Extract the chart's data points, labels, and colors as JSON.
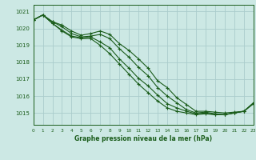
{
  "title": "Graphe pression niveau de la mer (hPa)",
  "background_color": "#cce8e4",
  "grid_color": "#aacccc",
  "line_color": "#1a5c1a",
  "marker_color": "#1a5c1a",
  "xlim": [
    0,
    23
  ],
  "ylim": [
    1014.3,
    1021.4
  ],
  "yticks": [
    1015,
    1016,
    1017,
    1018,
    1019,
    1020,
    1021
  ],
  "xticks": [
    0,
    1,
    2,
    3,
    4,
    5,
    6,
    7,
    8,
    9,
    10,
    11,
    12,
    13,
    14,
    15,
    16,
    17,
    18,
    19,
    20,
    21,
    22,
    23
  ],
  "series": [
    [
      1020.5,
      1020.8,
      1020.4,
      1020.2,
      1019.85,
      1019.6,
      1019.7,
      1019.85,
      1019.65,
      1019.1,
      1018.7,
      1018.2,
      1017.65,
      1016.9,
      1016.5,
      1015.9,
      1015.5,
      1015.1,
      1015.1,
      1015.05,
      1015.0,
      1015.05,
      1015.1,
      1015.6
    ],
    [
      1020.5,
      1020.8,
      1020.4,
      1020.1,
      1019.7,
      1019.5,
      1019.55,
      1019.65,
      1019.4,
      1018.8,
      1018.3,
      1017.7,
      1017.2,
      1016.5,
      1016.0,
      1015.6,
      1015.2,
      1015.0,
      1015.05,
      1014.95,
      1014.9,
      1015.0,
      1015.1,
      1015.55
    ],
    [
      1020.5,
      1020.8,
      1020.3,
      1019.9,
      1019.55,
      1019.45,
      1019.5,
      1019.2,
      1018.85,
      1018.2,
      1017.65,
      1017.05,
      1016.6,
      1016.05,
      1015.55,
      1015.3,
      1015.1,
      1014.95,
      1015.0,
      1014.9,
      1014.9,
      1015.0,
      1015.1,
      1015.55
    ],
    [
      1020.5,
      1020.8,
      1020.3,
      1019.85,
      1019.5,
      1019.4,
      1019.4,
      1019.0,
      1018.5,
      1017.9,
      1017.3,
      1016.7,
      1016.2,
      1015.7,
      1015.3,
      1015.1,
      1015.0,
      1014.9,
      1014.95,
      1014.9,
      1014.9,
      1015.0,
      1015.1,
      1015.6
    ]
  ]
}
